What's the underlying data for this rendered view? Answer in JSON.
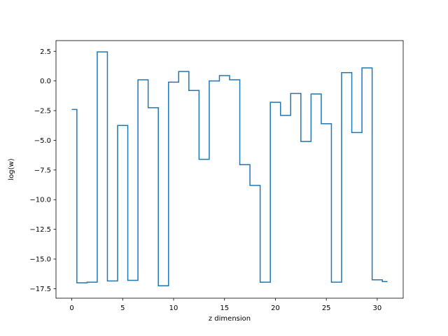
{
  "chart_data": {
    "type": "line",
    "step": "mid",
    "xlabel": "z dimension",
    "ylabel": "log(w)",
    "xlim": [
      -1.55,
      32.55
    ],
    "ylim": [
      -18.3,
      3.4
    ],
    "xticks": [
      0,
      5,
      10,
      15,
      20,
      25,
      30
    ],
    "xtick_labels": [
      "0",
      "5",
      "10",
      "15",
      "20",
      "25",
      "30"
    ],
    "yticks": [
      2.5,
      0.0,
      -2.5,
      -5.0,
      -7.5,
      -10.0,
      -12.5,
      -15.0,
      -17.5
    ],
    "ytick_labels": [
      "2.5",
      "0.0",
      "−2.5",
      "−5.0",
      "−7.5",
      "−10.0",
      "−12.5",
      "−15.0",
      "−17.5"
    ],
    "grid": false,
    "series": [
      {
        "color": "#1f77b4",
        "x": [
          0,
          1,
          2,
          3,
          4,
          5,
          6,
          7,
          8,
          9,
          10,
          11,
          12,
          13,
          14,
          15,
          16,
          17,
          18,
          19,
          20,
          21,
          22,
          23,
          24,
          25,
          26,
          27,
          28,
          29,
          30,
          31
        ],
        "values": [
          -2.4,
          -17.0,
          -16.95,
          2.45,
          -16.85,
          -3.75,
          -16.8,
          0.1,
          -2.25,
          -17.25,
          -0.1,
          0.8,
          -0.8,
          -6.6,
          0.0,
          0.45,
          0.1,
          -7.05,
          -8.8,
          -16.95,
          -1.8,
          -2.9,
          -1.05,
          -5.1,
          -1.1,
          -3.6,
          -16.95,
          0.7,
          -4.35,
          1.1,
          -16.75,
          -16.9
        ]
      }
    ]
  }
}
